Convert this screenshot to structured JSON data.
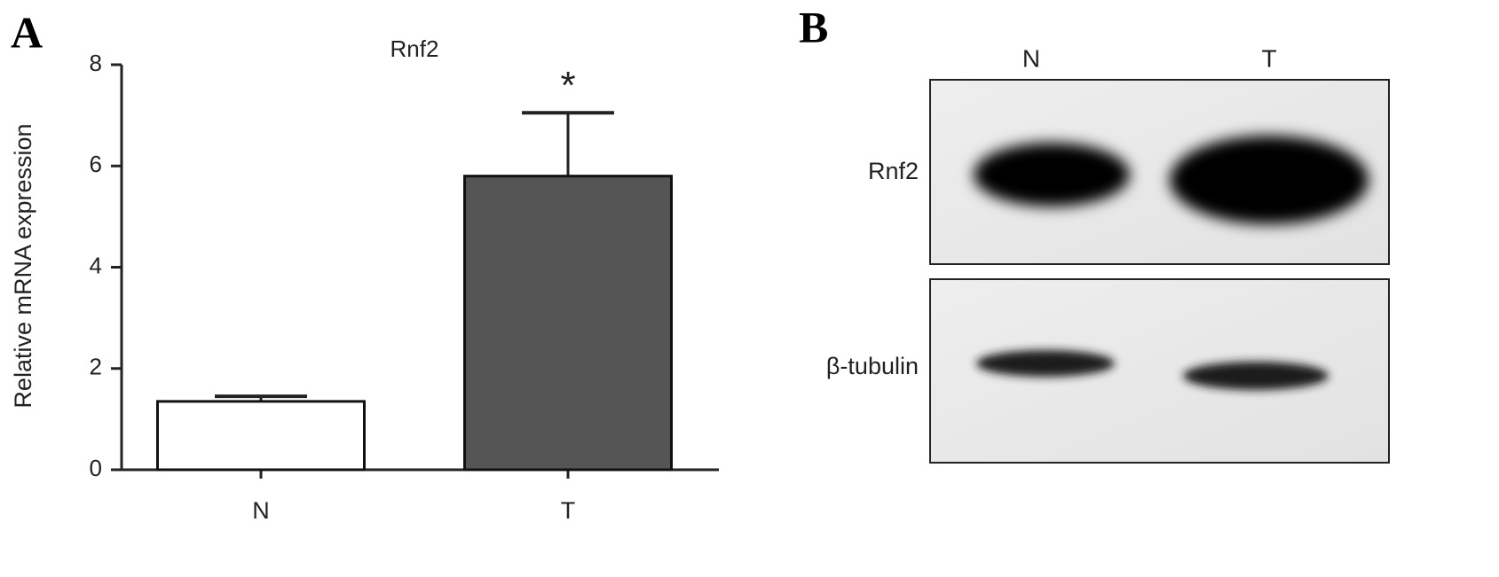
{
  "panels": {
    "a": "A",
    "b": "B"
  },
  "chart_data": {
    "type": "bar",
    "title": "Rnf2",
    "y_label": "Relative mRNA expression",
    "categories": [
      "N",
      "T"
    ],
    "values": [
      1.35,
      5.8
    ],
    "errors": [
      0.1,
      1.25
    ],
    "colors": [
      "#ffffff",
      "#555555"
    ],
    "annotations": [
      null,
      "*"
    ],
    "ylim": [
      0,
      8
    ],
    "yticks": [
      0,
      2,
      4,
      6,
      8
    ],
    "grid": false
  },
  "blot": {
    "lanes": [
      "N",
      "T"
    ],
    "rows": [
      "Rnf2",
      "β-tubulin"
    ]
  }
}
